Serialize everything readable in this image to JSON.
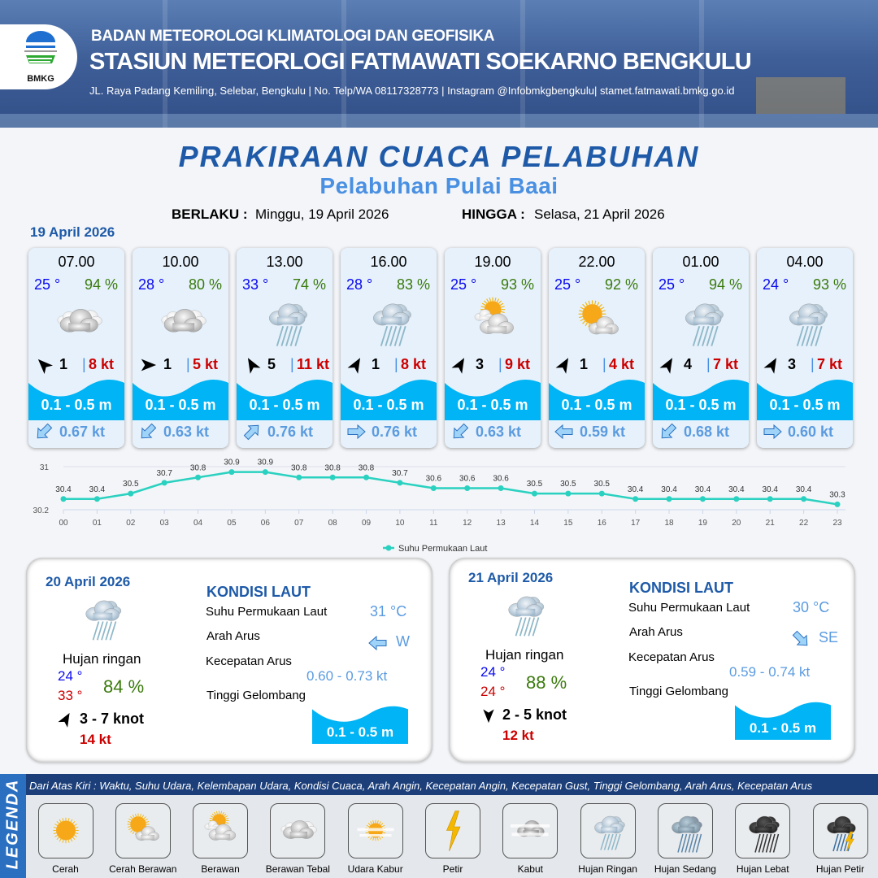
{
  "header": {
    "org": "BADAN METEOROLOGI KLIMATOLOGI DAN GEOFISIKA",
    "station": "STASIUN METEORLOGI FATMAWATI SOEKARNO BENGKULU",
    "address": "JL.  Raya Padang Kemiling, Selebar, Bengkulu | No. Telp/WA 08117328773 | Instagram @Infobmkgbengkulu| stamet.fatmawati.bmkg.go.id",
    "logo_text": "BMKG"
  },
  "title": "PRAKIRAAN CUACA PELABUHAN",
  "subtitle": "Pelabuhan Pulai Baai",
  "validity": {
    "from_label": "BERLAKU :",
    "from": "Minggu, 19 April 2026",
    "to_label": "HINGGA :",
    "to": "Selasa, 21 April 2026"
  },
  "day1_date": "19 April 2026",
  "colors": {
    "accent": "#1e5aa8",
    "wave": "#00b4f5",
    "temp": "#0a0af0",
    "humidity": "#3a7a0c",
    "gust": "#cc0000",
    "current": "#5b9be0",
    "chart_line": "#2ad1c0"
  },
  "cards": [
    {
      "time": "07.00",
      "temp": "25 °",
      "hum": "94 %",
      "icon": "berawan-tebal",
      "wind_dir_deg": 315,
      "wind": "1",
      "gust": "8 kt",
      "wave": "0.1 - 0.5 m",
      "current_dir_deg": 225,
      "current": "0.67 kt"
    },
    {
      "time": "10.00",
      "temp": "28 °",
      "hum": "80 %",
      "icon": "berawan-tebal",
      "wind_dir_deg": 90,
      "wind": "1",
      "gust": "5 kt",
      "wave": "0.1 - 0.5 m",
      "current_dir_deg": 225,
      "current": "0.63 kt"
    },
    {
      "time": "13.00",
      "temp": "33 °",
      "hum": "74 %",
      "icon": "hujan-ringan",
      "wind_dir_deg": 330,
      "wind": "5",
      "gust": "11 kt",
      "wave": "0.1 - 0.5 m",
      "current_dir_deg": 45,
      "current": "0.76 kt"
    },
    {
      "time": "16.00",
      "temp": "28 °",
      "hum": "83 %",
      "icon": "hujan-ringan",
      "wind_dir_deg": 30,
      "wind": "1",
      "gust": "8 kt",
      "wave": "0.1 - 0.5 m",
      "current_dir_deg": 90,
      "current": "0.76 kt"
    },
    {
      "time": "19.00",
      "temp": "25 °",
      "hum": "93 %",
      "icon": "berawan",
      "wind_dir_deg": 30,
      "wind": "3",
      "gust": "9 kt",
      "wave": "0.1 - 0.5 m",
      "current_dir_deg": 225,
      "current": "0.63 kt"
    },
    {
      "time": "22.00",
      "temp": "25 °",
      "hum": "92 %",
      "icon": "cerah-berawan",
      "wind_dir_deg": 30,
      "wind": "1",
      "gust": "4 kt",
      "wave": "0.1 - 0.5 m",
      "current_dir_deg": 270,
      "current": "0.59 kt"
    },
    {
      "time": "01.00",
      "temp": "25 °",
      "hum": "94 %",
      "icon": "hujan-ringan",
      "wind_dir_deg": 30,
      "wind": "4",
      "gust": "7 kt",
      "wave": "0.1 - 0.5 m",
      "current_dir_deg": 225,
      "current": "0.68 kt"
    },
    {
      "time": "04.00",
      "temp": "24 °",
      "hum": "93 %",
      "icon": "hujan-ringan",
      "wind_dir_deg": 30,
      "wind": "3",
      "gust": "7 kt",
      "wave": "0.1 - 0.5 m",
      "current_dir_deg": 90,
      "current": "0.60 kt"
    }
  ],
  "chart_data": {
    "type": "line",
    "x": [
      "00",
      "01",
      "02",
      "03",
      "04",
      "05",
      "06",
      "07",
      "08",
      "09",
      "10",
      "11",
      "12",
      "13",
      "14",
      "15",
      "16",
      "17",
      "18",
      "19",
      "20",
      "21",
      "22",
      "23"
    ],
    "series": [
      {
        "name": "Suhu Permukaan Laut",
        "values": [
          30.4,
          30.4,
          30.5,
          30.7,
          30.8,
          30.9,
          30.9,
          30.8,
          30.8,
          30.8,
          30.7,
          30.6,
          30.6,
          30.6,
          30.5,
          30.5,
          30.5,
          30.4,
          30.4,
          30.4,
          30.4,
          30.4,
          30.4,
          30.3
        ]
      }
    ],
    "ylim": [
      30.2,
      31
    ],
    "yticks": [
      "31",
      "30.2"
    ],
    "grid": true,
    "legend": "bottom-center"
  },
  "panels": [
    {
      "date": "20 April 2026",
      "icon": "hujan-ringan",
      "condition": "Hujan ringan",
      "tmin": "24 °",
      "tmax": "33 °",
      "hum": "84 %",
      "wind_dir_deg": 30,
      "wind": "3  - 7 knot",
      "gust": "14 kt",
      "kondisi_label": "KONDISI LAUT",
      "sst_label": "Suhu Permukaan Laut",
      "sst": "31 °C",
      "arah_label": "Arah Arus",
      "arah": "W",
      "arah_deg": 270,
      "kec_label": "Kecepatan Arus",
      "kec": "0.60  - 0.73 kt",
      "tinggi_label": "Tinggi Gelombang",
      "tinggi": "0.1 - 0.5 m"
    },
    {
      "date": "21 April 2026",
      "icon": "hujan-ringan",
      "condition": "Hujan ringan",
      "tmin": "24 °",
      "tmax": "24 °",
      "hum": "88 %",
      "wind_dir_deg": 180,
      "wind": "2  - 5 knot",
      "gust": "12 kt",
      "kondisi_label": "KONDISI LAUT",
      "sst_label": "Suhu Permukaan Laut",
      "sst": "30 °C",
      "arah_label": "Arah Arus",
      "arah": "SE",
      "arah_deg": 135,
      "kec_label": "Kecepatan Arus",
      "kec": "0.59  - 0.74 kt",
      "tinggi_label": "Tinggi Gelombang",
      "tinggi": "0.1 - 0.5 m"
    }
  ],
  "legend": {
    "tab": "LEGENDA",
    "description": "Dari Atas Kiri : Waktu, Suhu Udara, Kelembapan Udara, Kondisi Cuaca, Arah Angin, Kecepatan Angin, Kecepatan Gust, Tinggi Gelombang, Arah Arus, Kecepatan Arus",
    "items": [
      {
        "label": "Cerah",
        "icon": "cerah"
      },
      {
        "label": "Cerah Berawan",
        "icon": "cerah-berawan"
      },
      {
        "label": "Berawan",
        "icon": "berawan"
      },
      {
        "label": "Berawan Tebal",
        "icon": "berawan-tebal"
      },
      {
        "label": "Udara Kabur",
        "icon": "udara-kabur"
      },
      {
        "label": "Petir",
        "icon": "petir"
      },
      {
        "label": "Kabut",
        "icon": "kabut"
      },
      {
        "label": "Hujan Ringan",
        "icon": "hujan-ringan"
      },
      {
        "label": "Hujan Sedang",
        "icon": "hujan-sedang"
      },
      {
        "label": "Hujan Lebat",
        "icon": "hujan-lebat"
      },
      {
        "label": "Hujan Petir",
        "icon": "hujan-petir"
      }
    ]
  }
}
